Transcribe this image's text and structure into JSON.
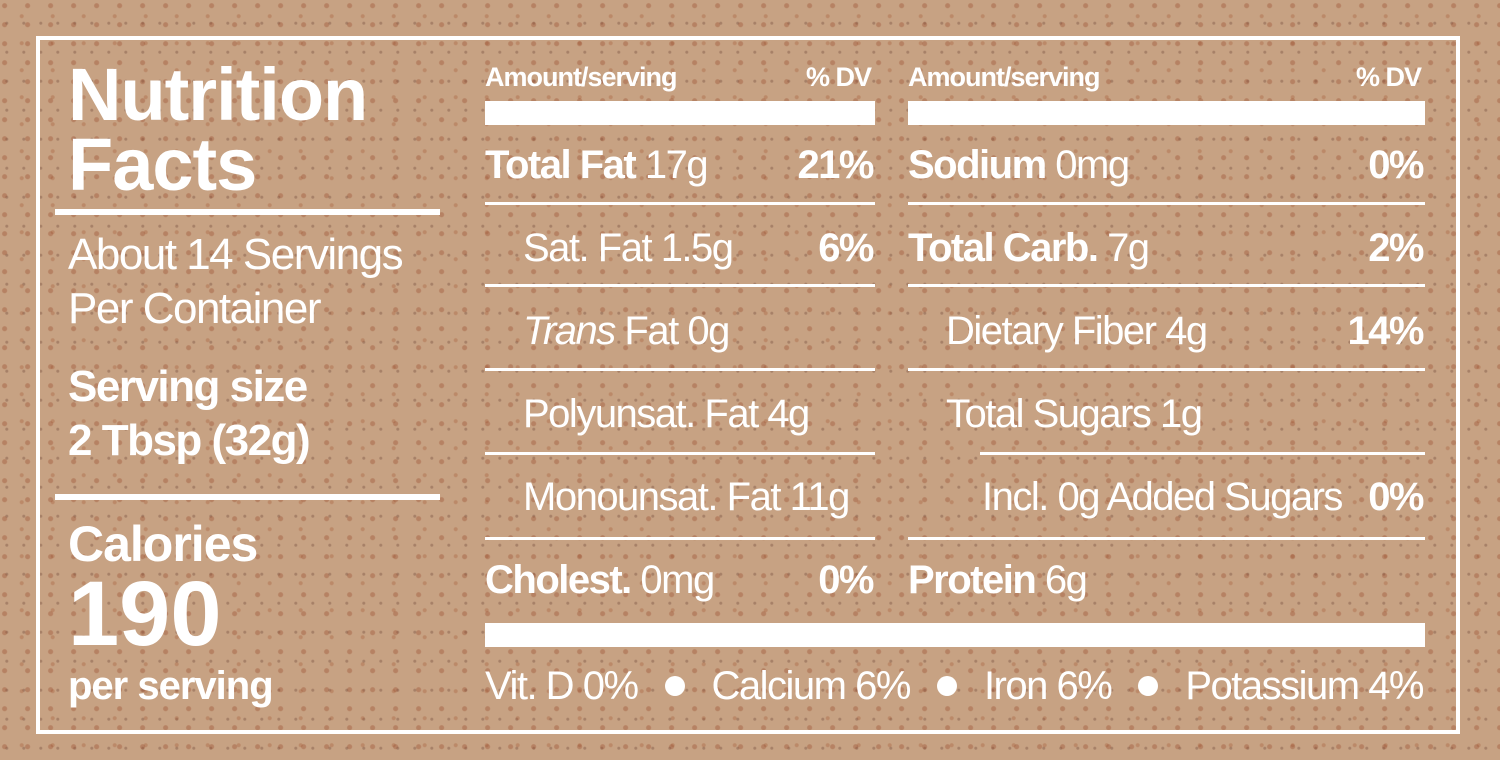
{
  "title": "Nutrition Facts",
  "servings": "About 14 Servings Per Container",
  "serving_size": {
    "label": "Serving size",
    "value": "2 Tbsp (32g)"
  },
  "calories": {
    "label": "Calories",
    "value": "190",
    "unit": "per serving"
  },
  "columns": [
    {
      "header": "Amount/serving",
      "dv_header": "% DV",
      "rows": [
        {
          "name": "Total Fat",
          "amount": "17g",
          "dv": "21%",
          "bold": true,
          "indent": 0
        },
        {
          "name": "Sat. Fat",
          "amount": "1.5g",
          "dv": "6%",
          "indent": 1
        },
        {
          "emphasis": "Trans",
          "name": "Fat",
          "amount": "0g",
          "indent": 1
        },
        {
          "name": "Polyunsat. Fat",
          "amount": "4g",
          "indent": 1
        },
        {
          "name": "Monounsat. Fat",
          "amount": "11g",
          "indent": 1
        },
        {
          "name": "Cholest.",
          "amount": "0mg",
          "dv": "0%",
          "bold": true,
          "indent": 0
        }
      ]
    },
    {
      "header": "Amount/serving",
      "dv_header": "% DV",
      "rows": [
        {
          "name": "Sodium",
          "amount": "0mg",
          "dv": "0%",
          "bold": true,
          "indent": 0
        },
        {
          "name": "Total Carb.",
          "amount": "7g",
          "dv": "2%",
          "bold": true,
          "indent": 0
        },
        {
          "name": "Dietary Fiber",
          "amount": "4g",
          "dv": "14%",
          "indent": 1
        },
        {
          "name": "Total Sugars",
          "amount": "1g",
          "indent": 1
        },
        {
          "name": "Incl. 0g Added Sugars",
          "dv": "0%",
          "indent": 2
        },
        {
          "name": "Protein",
          "amount": "6g",
          "bold": true,
          "indent": 0
        }
      ]
    }
  ],
  "vitamins": [
    {
      "name": "Vit. D",
      "dv": "0%"
    },
    {
      "name": "Calcium",
      "dv": "6%"
    },
    {
      "name": "Iron",
      "dv": "6%"
    },
    {
      "name": "Potassium",
      "dv": "4%"
    }
  ]
}
